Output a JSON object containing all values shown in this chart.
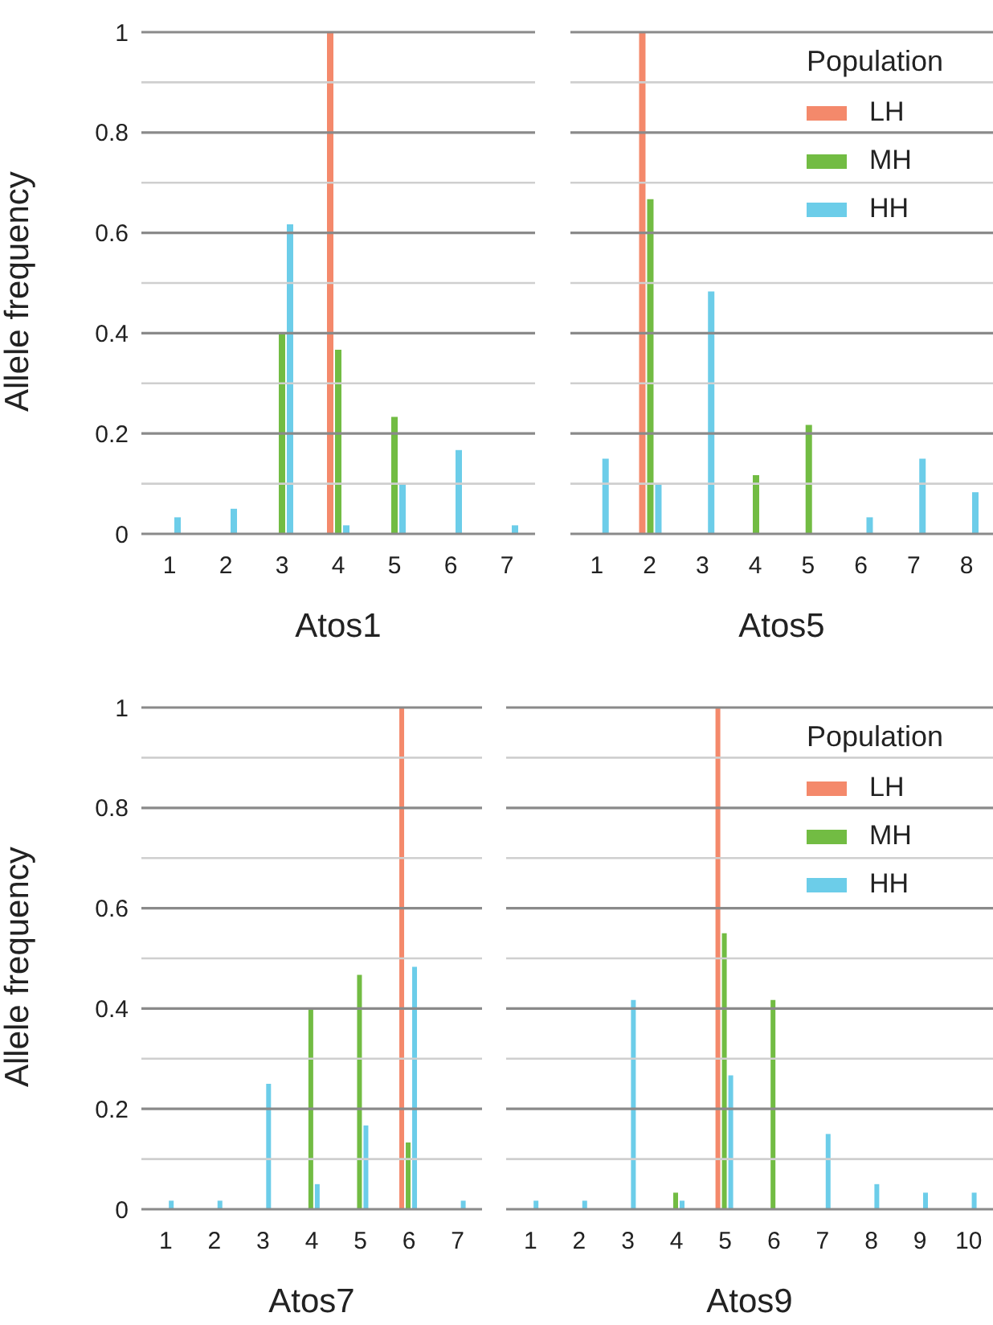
{
  "chart_data": [
    {
      "type": "bar",
      "xlabel": "Atos1",
      "ylabel": "Allele frequency",
      "categories": [
        "1",
        "2",
        "3",
        "4",
        "5",
        "6",
        "7"
      ],
      "series": [
        {
          "color": "#f4896b",
          "values": [
            0,
            0,
            0,
            1,
            0,
            0,
            0
          ]
        },
        {
          "color": "#72bc43",
          "values": [
            0,
            0,
            0.4,
            0.367,
            0.233,
            0,
            0
          ]
        },
        {
          "color": "#6ccde9",
          "values": [
            0.033,
            0.05,
            0.617,
            0.017,
            0.1,
            0.167,
            0.017
          ]
        }
      ],
      "ylim": [
        0,
        1
      ],
      "yticks": [
        0,
        {
          "value": 0.1,
          "label": null
        },
        0.2,
        {
          "value": 0.3,
          "label": null
        },
        0.4,
        {
          "value": 0.5,
          "label": null
        },
        0.6,
        {
          "value": 0.7,
          "label": null
        },
        0.8,
        {
          "value": 0.9,
          "label": null
        },
        1
      ],
      "grid": "y"
    },
    {
      "type": "bar",
      "xlabel": "Atos5",
      "legend_title": "Population",
      "legend": "top right",
      "tick_labels": "x",
      "categories": [
        "1",
        "2",
        "3",
        "4",
        "5",
        "6",
        "7",
        "8"
      ],
      "series": [
        {
          "name": "LH",
          "color": "#f4896b",
          "values": [
            0,
            1,
            0,
            0,
            0,
            0,
            0,
            0
          ]
        },
        {
          "name": "MH",
          "color": "#72bc43",
          "values": [
            0,
            0.667,
            0,
            0.117,
            0.217,
            0,
            0,
            0
          ]
        },
        {
          "name": "HH",
          "color": "#6ccde9",
          "values": [
            0.15,
            0.1,
            0.483,
            0,
            0,
            0.033,
            0.15,
            0.083
          ]
        }
      ],
      "ylim": [
        0,
        1
      ],
      "yticks": [
        0,
        {
          "value": 0.1,
          "label": null
        },
        0.2,
        {
          "value": 0.3,
          "label": null
        },
        0.4,
        {
          "value": 0.5,
          "label": null
        },
        0.6,
        {
          "value": 0.7,
          "label": null
        },
        0.8,
        {
          "value": 0.9,
          "label": null
        },
        1
      ],
      "grid": "y"
    },
    {
      "type": "bar",
      "xlabel": "Atos7",
      "ylabel": "Allele frequency",
      "categories": [
        "1",
        "2",
        "3",
        "4",
        "5",
        "6",
        "7"
      ],
      "series": [
        {
          "color": "#f4896b",
          "values": [
            0,
            0,
            0,
            0,
            0,
            1,
            0
          ]
        },
        {
          "color": "#72bc43",
          "values": [
            0,
            0,
            0,
            0.4,
            0.467,
            0.133,
            0
          ]
        },
        {
          "color": "#6ccde9",
          "values": [
            0.017,
            0.017,
            0.25,
            0.05,
            0.167,
            0.483,
            0.017
          ]
        }
      ],
      "ylim": [
        0,
        1
      ],
      "yticks": [
        0,
        {
          "value": 0.1,
          "label": null
        },
        0.2,
        {
          "value": 0.3,
          "label": null
        },
        0.4,
        {
          "value": 0.5,
          "label": null
        },
        0.6,
        {
          "value": 0.7,
          "label": null
        },
        0.8,
        {
          "value": 0.9,
          "label": null
        },
        1
      ],
      "grid": "y"
    },
    {
      "type": "bar",
      "xlabel": "Atos9",
      "legend_title": "Population",
      "legend": "top right",
      "tick_labels": "x",
      "categories": [
        "1",
        "2",
        "3",
        "4",
        "5",
        "6",
        "7",
        "8",
        "9",
        "10"
      ],
      "series": [
        {
          "name": "LH",
          "color": "#f4896b",
          "values": [
            0,
            0,
            0,
            0,
            1,
            0,
            0,
            0,
            0,
            0
          ]
        },
        {
          "name": "MH",
          "color": "#72bc43",
          "values": [
            0,
            0,
            0,
            0.033,
            0.55,
            0.417,
            0,
            0,
            0,
            0
          ]
        },
        {
          "name": "HH",
          "color": "#6ccde9",
          "values": [
            0.017,
            0.017,
            0.417,
            0.017,
            0.267,
            0,
            0.15,
            0.05,
            0.033,
            0.033
          ]
        }
      ],
      "ylim": [
        0,
        1
      ],
      "yticks": [
        0,
        {
          "value": 0.1,
          "label": null
        },
        0.2,
        {
          "value": 0.3,
          "label": null
        },
        0.4,
        {
          "value": 0.5,
          "label": null
        },
        0.6,
        {
          "value": 0.7,
          "label": null
        },
        0.8,
        {
          "value": 0.9,
          "label": null
        },
        1
      ],
      "grid": "y"
    }
  ]
}
